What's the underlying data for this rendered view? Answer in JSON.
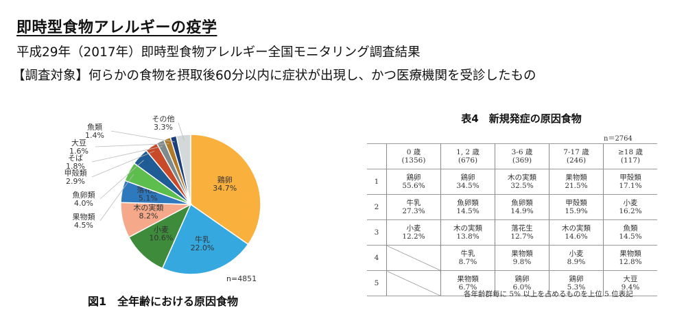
{
  "title": "即時型食物アレルギーの疫学",
  "subtitle": "平成29年（2017年）即時型食物アレルギー全国モニタリング調査結果",
  "target": "【調査対象】何らかの食物を摂取後60分以内に症状が出現し、かつ医療機関を受診したもの",
  "chart_data": [
    {
      "type": "pie",
      "title": "図1　全年齢における原因食物",
      "note": "n=4851",
      "categories": [
        "鶏卵",
        "牛乳",
        "小麦",
        "木の実類",
        "落花生",
        "果物類",
        "魚卵類",
        "甲殻類",
        "そば",
        "大豆",
        "魚類",
        "その他"
      ],
      "values": [
        34.7,
        22.0,
        10.6,
        8.2,
        5.1,
        4.5,
        4.0,
        2.9,
        1.8,
        1.6,
        1.4,
        3.3
      ],
      "labels": [
        "34.7%",
        "22.0%",
        "10.6%",
        "8.2%",
        "5.1%",
        "4.5%",
        "4.0%",
        "2.9%",
        "1.8%",
        "1.6%",
        "1.4%",
        "3.3%"
      ],
      "colors": [
        "#F9B03C",
        "#35A8E0",
        "#3E8B3C",
        "#F5A88A",
        "#2E78BE",
        "#5DBE4E",
        "#1F5C96",
        "#C94A28",
        "#7E8A8C",
        "#B07A2A",
        "#1B3F7C",
        "#D3D8DA"
      ],
      "start": "12 o'clock",
      "direction": "clockwise"
    },
    {
      "type": "table",
      "title": "表4　新規発症の原因食物",
      "note": "n＝2764",
      "columns": [
        {
          "age": "0 歳",
          "n": "(1356)"
        },
        {
          "age": "1, 2 歳",
          "n": "(676)"
        },
        {
          "age": "3-6 歳",
          "n": "(369)"
        },
        {
          "age": "7-17 歳",
          "n": "(246)"
        },
        {
          "age": "≥18 歳",
          "n": "(117)"
        }
      ],
      "rows": [
        {
          "rank": "1",
          "cells": [
            [
              "鶏卵",
              "55.6%"
            ],
            [
              "鶏卵",
              "34.5%"
            ],
            [
              "木の実類",
              "32.5%"
            ],
            [
              "果物類",
              "21.5%"
            ],
            [
              "甲殻類",
              "17.1%"
            ]
          ]
        },
        {
          "rank": "2",
          "cells": [
            [
              "牛乳",
              "27.3%"
            ],
            [
              "魚卵類",
              "14.5%"
            ],
            [
              "魚卵類",
              "14.9%"
            ],
            [
              "甲殻類",
              "15.9%"
            ],
            [
              "小麦",
              "16.2%"
            ]
          ]
        },
        {
          "rank": "3",
          "cells": [
            [
              "小麦",
              "12.2%"
            ],
            [
              "木の実類",
              "13.8%"
            ],
            [
              "落花生",
              "12.7%"
            ],
            [
              "木の実類",
              "14.6%"
            ],
            [
              "魚類",
              "14.5%"
            ]
          ]
        },
        {
          "rank": "4",
          "cells": [
            null,
            [
              "牛乳",
              "8.7%"
            ],
            [
              "果物類",
              "9.8%"
            ],
            [
              "小麦",
              "8.9%"
            ],
            [
              "果物類",
              "12.8%"
            ]
          ]
        },
        {
          "rank": "5",
          "cells": [
            null,
            [
              "果物類",
              "6.7%"
            ],
            [
              "鶏卵",
              "6.0%"
            ],
            [
              "鶏卵",
              "5.3%"
            ],
            [
              "大豆",
              "9.4%"
            ]
          ]
        }
      ],
      "footnote": "各年齢群毎に 5% 以上を占めるものを上位 5 位表記"
    }
  ]
}
